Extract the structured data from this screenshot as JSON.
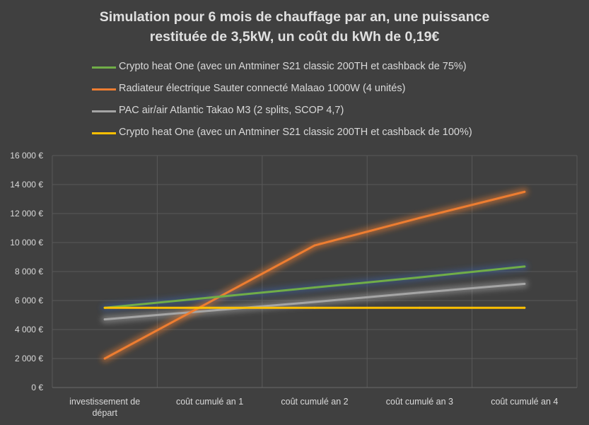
{
  "chart_data": {
    "type": "line",
    "title_lines": [
      "Simulation pour 6 mois de chauffage par an, une puissance",
      "restituée de 3,5kW, un coût du kWh de 0,19€"
    ],
    "categories": [
      [
        "investissement de",
        "départ"
      ],
      [
        "coût cumulé an 1"
      ],
      [
        "coût cumulé an 2"
      ],
      [
        "coût cumulé an 3"
      ],
      [
        "coût cumulé an 4"
      ]
    ],
    "ylim": [
      0,
      16000
    ],
    "yticks": [
      {
        "value": 0,
        "label": "0 €"
      },
      {
        "value": 2000,
        "label": "2 000 €"
      },
      {
        "value": 4000,
        "label": "4 000 €"
      },
      {
        "value": 6000,
        "label": "6 000 €"
      },
      {
        "value": 8000,
        "label": "8 000 €"
      },
      {
        "value": 10000,
        "label": "10 000 €"
      },
      {
        "value": 12000,
        "label": "12 000 €"
      },
      {
        "value": 14000,
        "label": "14 000 €"
      },
      {
        "value": 16000,
        "label": "16 000 €"
      }
    ],
    "grid": true,
    "legend_position": "top",
    "series": [
      {
        "name": "Crypto heat One (avec un Antminer S21 classic 200TH et cashback de 75%)",
        "color": "#70ad47",
        "glow": "#3a5fa0",
        "values": [
          5500,
          6200,
          6900,
          7600,
          8350
        ]
      },
      {
        "name": "Radiateur électrique Sauter connecté Malaao 1000W (4 unités)",
        "color": "#ed7d31",
        "glow": "#ed7d31",
        "values": [
          2000,
          5900,
          9800,
          11700,
          13500
        ]
      },
      {
        "name": "PAC air/air Atlantic Takao M3 (2 splits, SCOP 4,7)",
        "color": "#a5a5a5",
        "glow": "#a5a5a5",
        "values": [
          4700,
          5300,
          5900,
          6550,
          7150
        ]
      },
      {
        "name": "Crypto heat One (avec un Antminer S21 classic 200TH et cashback de 100%)",
        "color": "#ffc000",
        "glow": "#ffc000",
        "values": [
          5500,
          5500,
          5500,
          5500,
          5500
        ]
      }
    ]
  }
}
